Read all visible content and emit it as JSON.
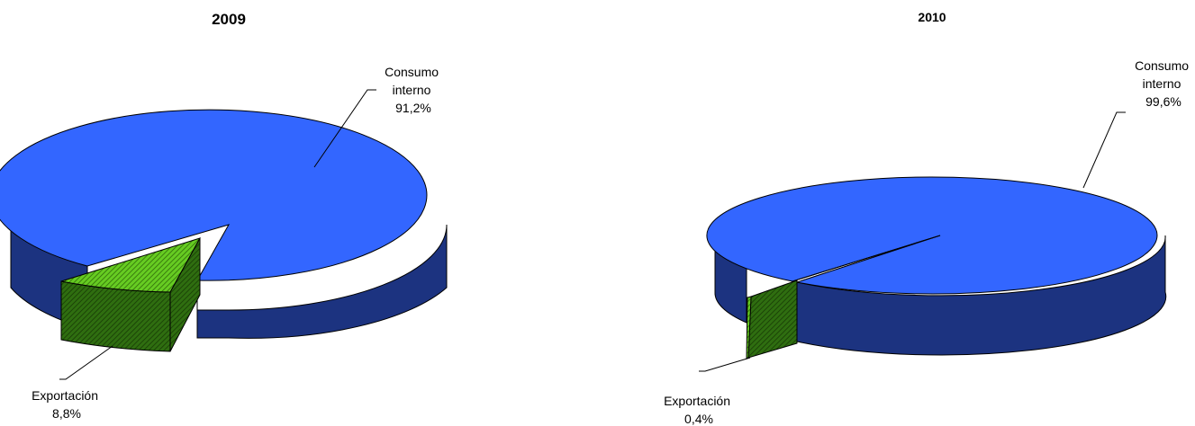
{
  "chart_data": [
    {
      "type": "pie",
      "style": "3d-exploded",
      "title": "2009",
      "slices": [
        {
          "label_lines": [
            "Consumo",
            "interno"
          ],
          "value_label": "91,2%",
          "value": 91.2,
          "color": "#3366ff",
          "exploded": false
        },
        {
          "label_lines": [
            "Exportación"
          ],
          "value_label": "8,8%",
          "value": 8.8,
          "color": "#66cc22",
          "exploded": true
        }
      ]
    },
    {
      "type": "pie",
      "style": "3d-exploded",
      "title": "2010",
      "slices": [
        {
          "label_lines": [
            "Consumo",
            "interno"
          ],
          "value_label": "99,6%",
          "value": 99.6,
          "color": "#3366ff",
          "exploded": false
        },
        {
          "label_lines": [
            "Exportación"
          ],
          "value_label": "0,4%",
          "value": 0.4,
          "color": "#66cc22",
          "exploded": true
        }
      ]
    }
  ]
}
